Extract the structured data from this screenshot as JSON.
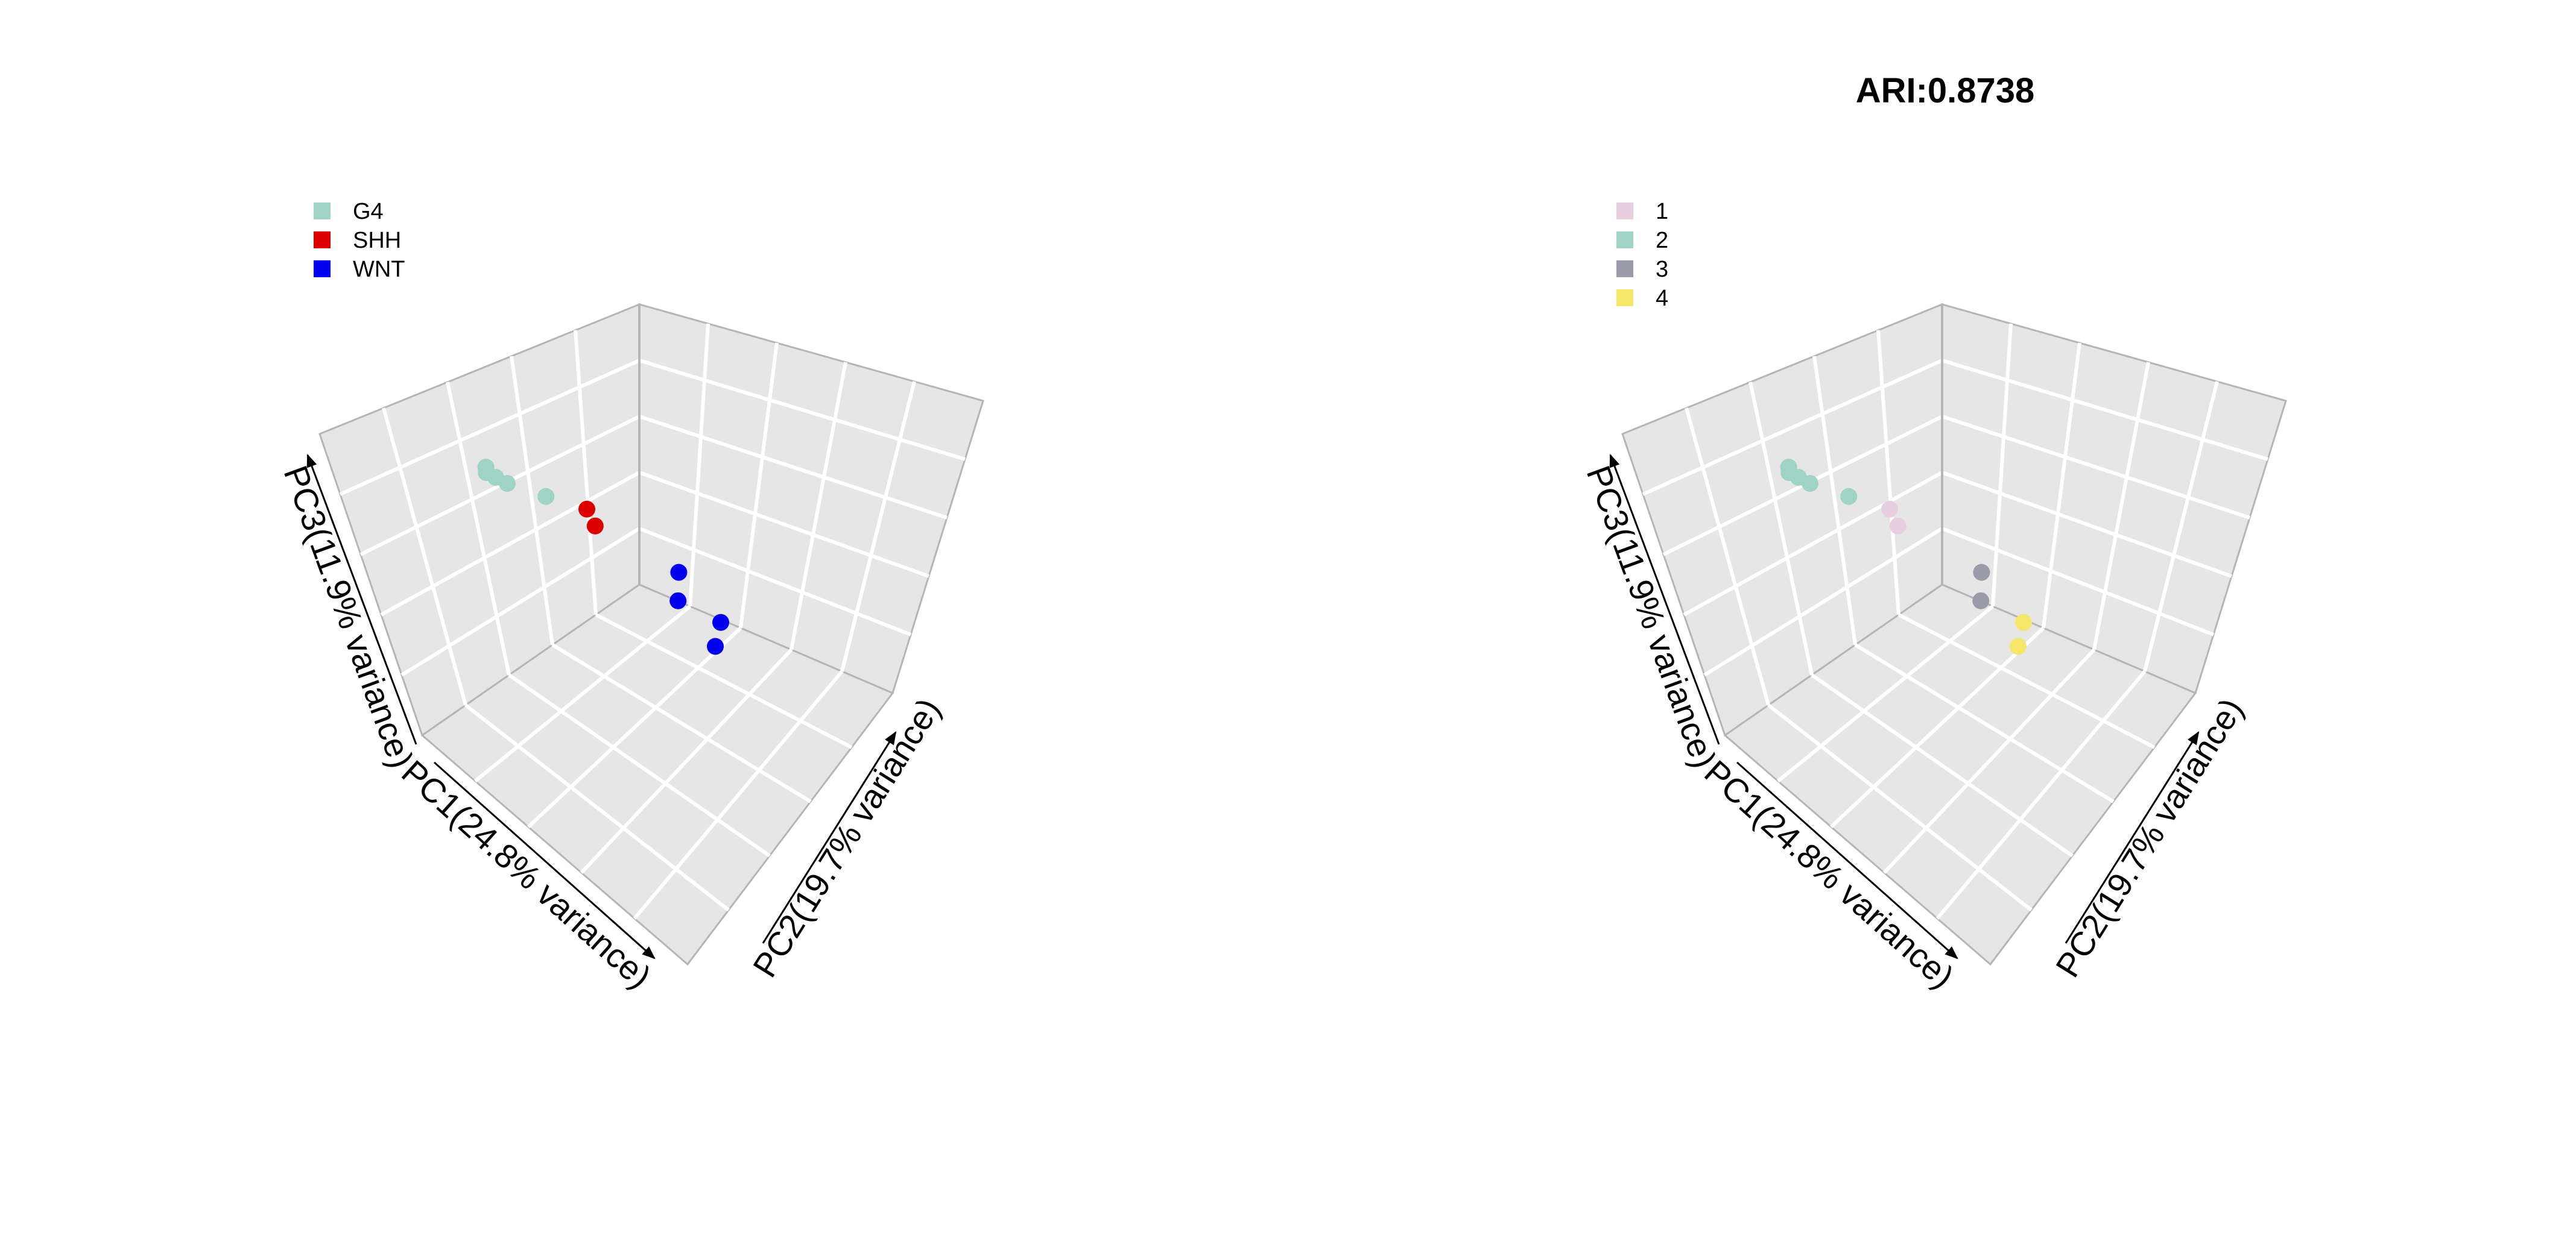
{
  "chart_data": [
    {
      "type": "scatter",
      "title": "",
      "xlabel": "PC1(24.8% variance)",
      "ylabel": "PC2(19.7% variance)",
      "zlabel": "PC3(11.9% variance)",
      "legend_position": "top-left",
      "legend": [
        {
          "label": "G4",
          "color": "#9ed3c6"
        },
        {
          "label": "SHH",
          "color": "#dd0000"
        },
        {
          "label": "WNT",
          "color": "#0000ee"
        }
      ],
      "series": [
        {
          "name": "G4",
          "color": "#9ed3c6",
          "points": [
            {
              "x": 0.8,
              "y": 0.08,
              "z": 0.88
            },
            {
              "x": 0.81,
              "y": 0.09,
              "z": 0.87
            },
            {
              "x": 0.79,
              "y": 0.11,
              "z": 0.85
            },
            {
              "x": 0.76,
              "y": 0.13,
              "z": 0.82
            },
            {
              "x": 0.78,
              "y": 0.3,
              "z": 0.85
            }
          ]
        },
        {
          "name": "SHH",
          "color": "#dd0000",
          "points": [
            {
              "x": 0.3,
              "y": 0.05,
              "z": 0.45
            },
            {
              "x": 0.32,
              "y": 0.1,
              "z": 0.42
            }
          ]
        },
        {
          "name": "WNT",
          "color": "#0000ee",
          "points": [
            {
              "x": 0.95,
              "y": 0.97,
              "z": 0.93
            },
            {
              "x": 0.93,
              "y": 0.95,
              "z": 0.81
            },
            {
              "x": 0.15,
              "y": 0.45,
              "z": 0.12
            },
            {
              "x": 0.35,
              "y": 0.6,
              "z": 0.2
            }
          ]
        }
      ]
    },
    {
      "type": "scatter",
      "title": "ARI:0.8738",
      "xlabel": "PC1(24.8% variance)",
      "ylabel": "PC2(19.7% variance)",
      "zlabel": "PC3(11.9% variance)",
      "legend_position": "top-left",
      "legend": [
        {
          "label": "1",
          "color": "#e8cfe0"
        },
        {
          "label": "2",
          "color": "#9ed3c6"
        },
        {
          "label": "3",
          "color": "#9a9aa8"
        },
        {
          "label": "4",
          "color": "#f5e66a"
        }
      ],
      "series": [
        {
          "name": "1",
          "color": "#e8cfe0",
          "points": [
            {
              "x": 0.3,
              "y": 0.05,
              "z": 0.45
            },
            {
              "x": 0.32,
              "y": 0.1,
              "z": 0.42
            }
          ]
        },
        {
          "name": "2",
          "color": "#9ed3c6",
          "points": [
            {
              "x": 0.8,
              "y": 0.08,
              "z": 0.88
            },
            {
              "x": 0.81,
              "y": 0.09,
              "z": 0.87
            },
            {
              "x": 0.79,
              "y": 0.11,
              "z": 0.85
            },
            {
              "x": 0.76,
              "y": 0.13,
              "z": 0.82
            },
            {
              "x": 0.78,
              "y": 0.3,
              "z": 0.85
            }
          ]
        },
        {
          "name": "3",
          "color": "#9a9aa8",
          "points": [
            {
              "x": 0.95,
              "y": 0.97,
              "z": 0.93
            },
            {
              "x": 0.93,
              "y": 0.95,
              "z": 0.81
            }
          ]
        },
        {
          "name": "4",
          "color": "#f5e66a",
          "points": [
            {
              "x": 0.15,
              "y": 0.45,
              "z": 0.12
            },
            {
              "x": 0.35,
              "y": 0.6,
              "z": 0.2
            }
          ]
        }
      ]
    }
  ]
}
